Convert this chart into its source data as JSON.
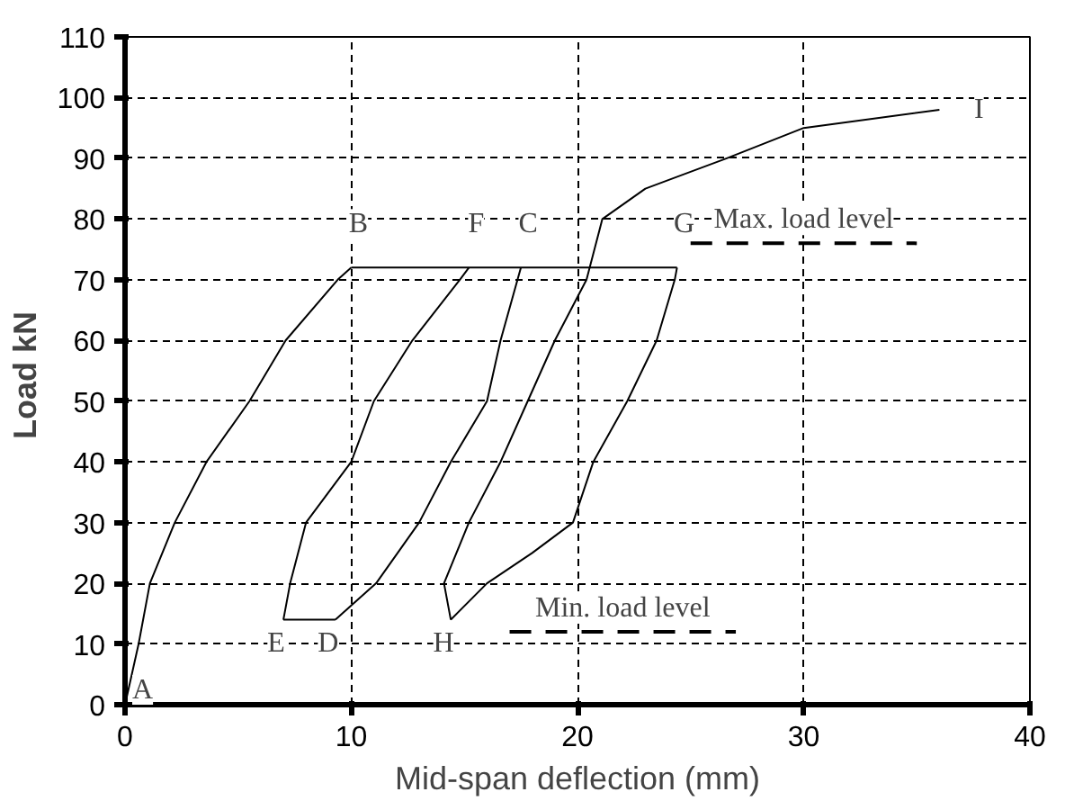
{
  "chart_data": {
    "type": "line",
    "xlabel": "Mid-span deflection (mm)",
    "ylabel": "Load  kN",
    "xlim": [
      0,
      40
    ],
    "ylim": [
      0,
      110
    ],
    "xticks": [
      0,
      10,
      20,
      30,
      40
    ],
    "yticks": [
      0,
      10,
      20,
      30,
      40,
      50,
      60,
      70,
      80,
      90,
      100,
      110
    ],
    "grid": true,
    "line_style": "solid",
    "series": [
      {
        "color": "#000000",
        "x": [
          0,
          0.6,
          1.1,
          2.2,
          3.6,
          5.5,
          7.1,
          9.4,
          10
        ],
        "values": [
          0,
          10,
          20,
          30,
          40,
          50,
          60,
          70,
          72
        ]
      },
      {
        "color": "#000000",
        "x": [
          10,
          24.4
        ],
        "values": [
          72,
          72
        ]
      },
      {
        "color": "#000000",
        "x": [
          7,
          7.3,
          8,
          10,
          11,
          12.7,
          14.8,
          15.2
        ],
        "values": [
          14,
          20,
          30,
          40,
          50,
          60,
          70,
          72
        ]
      },
      {
        "color": "#000000",
        "x": [
          7,
          9.3
        ],
        "values": [
          14,
          14
        ]
      },
      {
        "color": "#000000",
        "x": [
          9.3,
          11.1,
          13,
          14.4,
          16,
          16.6,
          17.5
        ],
        "values": [
          14,
          20,
          30,
          40,
          50,
          60,
          72
        ]
      },
      {
        "color": "#000000",
        "x": [
          14.4,
          14.1,
          15.2,
          16.6,
          17.8,
          19,
          20.4,
          21.1,
          23,
          26.6,
          30,
          36
        ],
        "values": [
          14,
          20,
          30,
          40,
          50,
          60,
          70,
          80,
          85,
          90,
          95,
          98
        ]
      },
      {
        "color": "#000000",
        "x": [
          14.4,
          16,
          18,
          19.8,
          20.7,
          22.2,
          23.5,
          24.3,
          24.4
        ],
        "values": [
          14,
          20,
          25,
          30,
          40,
          50,
          60,
          70,
          72
        ]
      },
      {
        "color": "#000000",
        "x": [
          25,
          35
        ],
        "values": [
          76,
          76
        ],
        "line_style": "dashed"
      },
      {
        "color": "#000000",
        "x": [
          17,
          27
        ],
        "values": [
          12,
          12
        ],
        "line_style": "dashed"
      }
    ],
    "annotations": [
      {
        "text": "A",
        "x": 0,
        "y": 0
      },
      {
        "text": "B",
        "x": 10,
        "y": 72
      },
      {
        "text": "F",
        "x": 15.2,
        "y": 72
      },
      {
        "text": "C",
        "x": 17.5,
        "y": 72
      },
      {
        "text": "G",
        "x": 24.4,
        "y": 72
      },
      {
        "text": "I",
        "x": 36,
        "y": 98
      },
      {
        "text": "E",
        "x": 7,
        "y": 14
      },
      {
        "text": "D",
        "x": 9.3,
        "y": 14
      },
      {
        "text": "H",
        "x": 14.4,
        "y": 14
      },
      {
        "text": "Max. load level",
        "x": 30,
        "y": 76
      },
      {
        "text": "Min. load level",
        "x": 22,
        "y": 12
      }
    ]
  }
}
